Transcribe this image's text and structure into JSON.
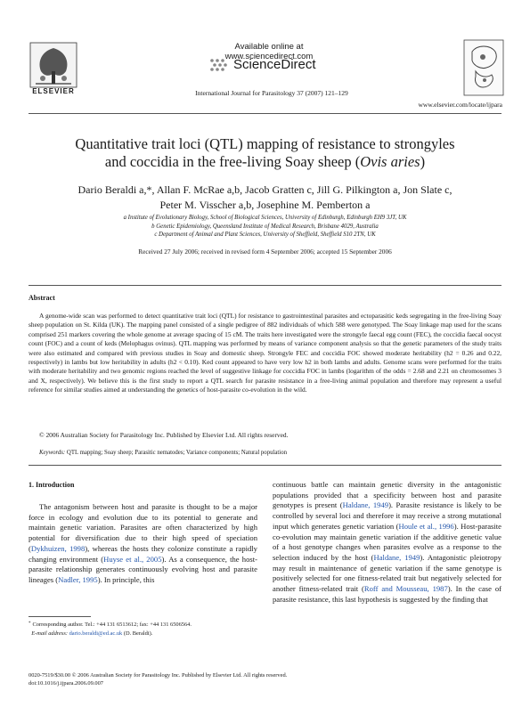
{
  "header": {
    "publisher": "ELSEVIER",
    "available_online": "Available online at www.sciencedirect.com",
    "sciencedirect": "ScienceDirect",
    "journal_citation": "International Journal for Parasitology 37 (2007) 121–129",
    "journal_url": "www.elsevier.com/locate/ijpara"
  },
  "article": {
    "title_part1": "Quantitative trait loci (QTL) mapping of resistance to strongyles",
    "title_part2": "and coccidia in the free-living Soay sheep (",
    "title_italic": "Ovis aries",
    "title_end": ")",
    "authors_line1": "Dario Beraldi a,*, Allan F. McRae a,b, Jacob Gratten c, Jill G. Pilkington a, Jon Slate c,",
    "authors_line2": "Peter M. Visscher a,b, Josephine M. Pemberton a",
    "affiliations": [
      "a Institute of Evolutionary Biology, School of Biological Sciences, University of Edinburgh, Edinburgh EH9 3JT, UK",
      "b Genetic Epidemiology, Queensland Institute of Medical Research, Brisbane 4029, Australia",
      "c Department of Animal and Plant Sciences, University of Sheffield, Sheffield S10 2TN, UK"
    ],
    "received": "Received 27 July 2006; received in revised form 4 September 2006; accepted 15 September 2006"
  },
  "abstract": {
    "heading": "Abstract",
    "body": "A genome-wide scan was performed to detect quantitative trait loci (QTL) for resistance to gastrointestinal parasites and ectoparasitic keds segregating in the free-living Soay sheep population on St. Kilda (UK). The mapping panel consisted of a single pedigree of 882 individuals of which 588 were genotyped. The Soay linkage map used for the scans comprised 251 markers covering the whole genome at average spacing of 15 cM. The traits here investigated were the strongyle faecal egg count (FEC), the coccidia faecal oocyst count (FOC) and a count of keds (Melophagus ovinus). QTL mapping was performed by means of variance component analysis so that the genetic parameters of the study traits were also estimated and compared with previous studies in Soay and domestic sheep. Strongyle FEC and coccidia FOC showed moderate heritability (h2 = 0.26 and 0.22, respectively) in lambs but low heritability in adults (h2 < 0.10). Ked count appeared to have very low h2 in both lambs and adults. Genome scans were performed for the traits with moderate heritability and two genomic regions reached the level of suggestive linkage for coccidia FOC in lambs (logarithm of the odds = 2.68 and 2.21 on chromosomes 3 and X, respectively). We believe this is the first study to report a QTL search for parasite resistance in a free-living animal population and therefore may represent a useful reference for similar studies aimed at understanding the genetics of host-parasite co-evolution in the wild.",
    "copyright": "© 2006 Australian Society for Parasitology Inc. Published by Elsevier Ltd. All rights reserved.",
    "keywords_label": "Keywords:",
    "keywords": "QTL mapping; Soay sheep; Parasitic nematodes; Variance components; Natural population"
  },
  "intro": {
    "heading": "1. Introduction",
    "left_p1_a": "The antagonism between host and parasite is thought to be a major force in ecology and evolution due to its potential to generate and maintain genetic variation. Parasites are often characterized by high potential for diversification due to their high speed of speciation (",
    "ref_dykhuizen": "Dykhuizen, 1998",
    "left_p1_b": "), whereas the hosts they colonize constitute a rapidly changing environment (",
    "ref_huyse": "Huyse et al., 2005",
    "left_p1_c": "). As a consequence, the host-parasite relationship generates continuously evolving host and parasite lineages (",
    "ref_nadler": "Nadler, 1995",
    "left_p1_d": "). In principle, this",
    "right_a": "continuous battle can maintain genetic diversity in the antagonistic populations provided that a specificity between host and parasite genotypes is present (",
    "ref_haldane1": "Haldane, 1949",
    "right_b": "). Parasite resistance is likely to be controlled by several loci and therefore it may receive a strong mutational input which generates genetic variation (",
    "ref_houle": "Houle et al., 1996",
    "right_c": "). Host-parasite co-evolution may maintain genetic variation if the additive genetic value of a host genotype changes when parasites evolve as a response to the selection induced by the host (",
    "ref_haldane2": "Haldane, 1949",
    "right_d": "). Antagonistic pleiotropy may result in maintenance of genetic variation if the same genotype is positively selected for one fitness-related trait but negatively selected for another fitness-related trait (",
    "ref_roff": "Roff and Mousseau, 1987",
    "right_e": "). In the case of parasite resistance, this last hypothesis is suggested by the finding that"
  },
  "footnote": {
    "corresponding": "Corresponding author. Tel.: +44 131 6513612; fax: +44 131 6506564.",
    "email_label": "E-mail address:",
    "email": "dario.beraldi@ed.ac.uk",
    "email_name": "(D. Beraldi)."
  },
  "doc_info": {
    "line1": "0020-7519/$30.00 © 2006 Australian Society for Parasitology Inc. Published by Elsevier Ltd. All rights reserved.",
    "line2": "doi:10.1016/j.ijpara.2006.09.007"
  }
}
